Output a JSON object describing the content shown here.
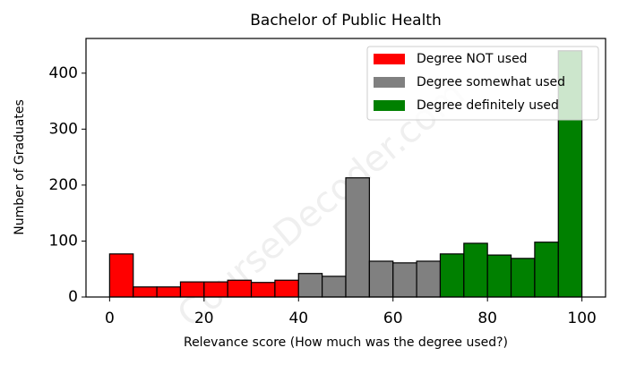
{
  "chart_data": {
    "type": "histogram",
    "title": "Bachelor of Public Health",
    "xlabel": "Relevance score (How much was the degree used?)",
    "ylabel": "Number of Graduates",
    "watermark": "CourseDecoder.com",
    "xlim": [
      -5,
      105
    ],
    "xticks": [
      0,
      20,
      40,
      60,
      80,
      100
    ],
    "ylim": [
      0,
      462
    ],
    "yticks": [
      0,
      100,
      200,
      300,
      400
    ],
    "legend": "upper right",
    "series": [
      {
        "name": "Degree NOT used",
        "color": "#ff0000",
        "bins": [
          0,
          5,
          10,
          15,
          20,
          25,
          30,
          35,
          40
        ],
        "values": [
          77,
          18,
          18,
          27,
          27,
          30,
          26,
          30
        ]
      },
      {
        "name": "Degree somewhat used",
        "color": "#808080",
        "bins": [
          40,
          45,
          50,
          55,
          60,
          65,
          70
        ],
        "values": [
          42,
          37,
          213,
          64,
          61,
          64
        ]
      },
      {
        "name": "Degree definitely used",
        "color": "#008000",
        "bins": [
          70,
          75,
          80,
          85,
          90,
          95,
          100
        ],
        "values": [
          77,
          96,
          75,
          69,
          98,
          440
        ]
      }
    ]
  }
}
